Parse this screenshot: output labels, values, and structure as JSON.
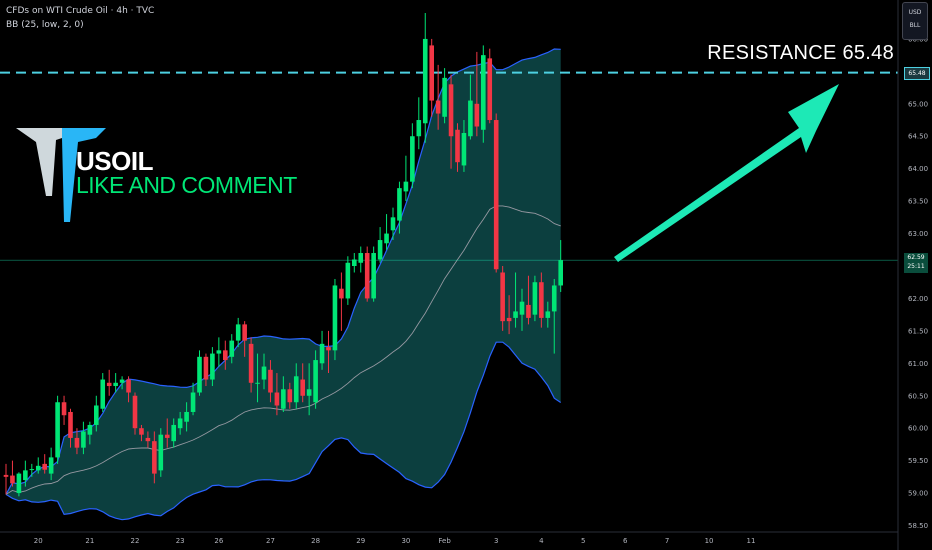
{
  "header": {
    "symbol_line": "CFDs on WTI Crude Oil · 4h · TVC",
    "indicator_line": "BB (25, low, 2, 0)"
  },
  "brand": {
    "title": "USOIL",
    "subtitle": "LIKE AND COMMENT",
    "logo_icon": "tradingview-style-logo-icon"
  },
  "annotation": {
    "text": "RESISTANCE  65.48",
    "arrow_icon": "up-right-arrow-icon",
    "arrow_color": "#1de9b6"
  },
  "price_scale_toggle": {
    "top": "USD",
    "bottom": "BLL"
  },
  "price_badges": {
    "resistance": "65.48",
    "current_price": "62.59",
    "countdown": "25:11"
  },
  "colors": {
    "background": "#000000",
    "bull": "#00e676",
    "bear": "#f23645",
    "band_fill": "#0e4a4a",
    "band_line": "#2962ff",
    "basis": "#9598a1",
    "resistance_line": "#4dd0e1",
    "current_line": "#1de9b6"
  },
  "chart_data": {
    "type": "candlestick",
    "title": "CFDs on WTI Crude Oil · 4h · TVC",
    "ylim": [
      58.4,
      66.6
    ],
    "y_ticks": [
      "58.50",
      "59.00",
      "59.50",
      "60.00",
      "60.50",
      "61.00",
      "61.50",
      "62.00",
      "62.50",
      "63.00",
      "63.50",
      "64.00",
      "64.50",
      "65.00",
      "65.50",
      "66.00"
    ],
    "x_ticks": [
      {
        "i": 5,
        "label": "20"
      },
      {
        "i": 13,
        "label": "21"
      },
      {
        "i": 20,
        "label": "22"
      },
      {
        "i": 27,
        "label": "23"
      },
      {
        "i": 33,
        "label": "26"
      },
      {
        "i": 41,
        "label": "27"
      },
      {
        "i": 48,
        "label": "28"
      },
      {
        "i": 55,
        "label": "29"
      },
      {
        "i": 62,
        "label": "30"
      },
      {
        "i": 68,
        "label": "Feb"
      },
      {
        "i": 76,
        "label": "3"
      },
      {
        "i": 83,
        "label": "4"
      },
      {
        "i": 89.5,
        "label": "5"
      },
      {
        "i": 96,
        "label": "6"
      },
      {
        "i": 102.5,
        "label": "7"
      },
      {
        "i": 109,
        "label": "10"
      },
      {
        "i": 115.5,
        "label": "11"
      }
    ],
    "resistance": 65.48,
    "current_price": 62.59,
    "candles": [
      [
        59.28,
        59.25,
        59.45,
        58.98
      ],
      [
        59.27,
        59.15,
        59.5,
        59.1
      ],
      [
        59.0,
        59.3,
        59.32,
        58.95
      ],
      [
        59.2,
        59.35,
        59.5,
        59.1
      ],
      [
        59.36,
        59.37,
        59.45,
        59.25
      ],
      [
        59.35,
        59.42,
        59.55,
        59.3
      ],
      [
        59.45,
        59.36,
        59.6,
        59.3
      ],
      [
        59.3,
        59.55,
        59.7,
        59.2
      ],
      [
        59.55,
        60.4,
        60.5,
        59.45
      ],
      [
        60.4,
        60.2,
        60.5,
        60.05
      ],
      [
        60.25,
        59.85,
        60.3,
        59.7
      ],
      [
        59.85,
        59.7,
        60.0,
        59.6
      ],
      [
        59.7,
        59.95,
        60.1,
        59.6
      ],
      [
        59.9,
        60.05,
        60.1,
        59.75
      ],
      [
        60.05,
        60.35,
        60.5,
        59.95
      ],
      [
        60.3,
        60.75,
        60.85,
        60.25
      ],
      [
        60.7,
        60.65,
        60.9,
        60.5
      ],
      [
        60.65,
        60.7,
        60.85,
        60.55
      ],
      [
        60.7,
        60.75,
        60.8,
        60.6
      ],
      [
        60.75,
        60.55,
        60.8,
        60.4
      ],
      [
        60.5,
        60.0,
        60.55,
        59.9
      ],
      [
        60.0,
        59.9,
        60.05,
        59.8
      ],
      [
        59.85,
        59.8,
        59.95,
        59.7
      ],
      [
        59.8,
        59.3,
        59.95,
        59.15
      ],
      [
        59.35,
        59.9,
        60.0,
        59.25
      ],
      [
        59.9,
        59.85,
        60.15,
        59.7
      ],
      [
        59.8,
        60.05,
        60.15,
        59.7
      ],
      [
        60.0,
        60.15,
        60.25,
        59.9
      ],
      [
        60.1,
        60.25,
        60.4,
        59.95
      ],
      [
        60.25,
        60.55,
        60.7,
        60.2
      ],
      [
        60.55,
        61.1,
        61.2,
        60.5
      ],
      [
        61.1,
        60.75,
        61.15,
        60.65
      ],
      [
        60.75,
        61.15,
        61.25,
        60.65
      ],
      [
        61.15,
        61.2,
        61.4,
        60.95
      ],
      [
        61.2,
        61.05,
        61.35,
        60.9
      ],
      [
        61.1,
        61.35,
        61.45,
        61.0
      ],
      [
        61.35,
        61.6,
        61.7,
        61.25
      ],
      [
        61.6,
        61.35,
        61.65,
        61.1
      ],
      [
        61.3,
        60.7,
        61.4,
        60.55
      ],
      [
        60.7,
        60.7,
        61.15,
        60.4
      ],
      [
        60.75,
        60.95,
        61.15,
        60.6
      ],
      [
        60.9,
        60.55,
        61.05,
        60.4
      ],
      [
        60.55,
        60.35,
        60.85,
        60.2
      ],
      [
        60.3,
        60.6,
        60.8,
        60.25
      ],
      [
        60.6,
        60.4,
        60.7,
        60.3
      ],
      [
        60.4,
        60.8,
        61.0,
        60.3
      ],
      [
        60.75,
        60.5,
        61.0,
        60.4
      ],
      [
        60.5,
        60.6,
        61.0,
        60.2
      ],
      [
        60.4,
        61.05,
        61.2,
        60.3
      ],
      [
        61.0,
        61.3,
        61.5,
        60.9
      ],
      [
        61.25,
        61.2,
        61.5,
        60.85
      ],
      [
        61.2,
        62.2,
        62.3,
        61.05
      ],
      [
        62.15,
        62.0,
        62.4,
        61.5
      ],
      [
        62.0,
        62.55,
        62.65,
        61.9
      ],
      [
        62.5,
        62.6,
        62.7,
        62.4
      ],
      [
        62.55,
        62.7,
        62.8,
        62.4
      ],
      [
        62.7,
        62.0,
        62.8,
        61.95
      ],
      [
        62.0,
        62.7,
        62.8,
        61.95
      ],
      [
        62.6,
        62.9,
        63.1,
        62.55
      ],
      [
        62.85,
        63.0,
        63.3,
        62.75
      ],
      [
        63.05,
        63.25,
        63.4,
        62.9
      ],
      [
        63.2,
        63.7,
        63.8,
        63.0
      ],
      [
        63.65,
        63.8,
        64.2,
        63.5
      ],
      [
        63.8,
        64.5,
        64.7,
        63.7
      ],
      [
        64.5,
        64.75,
        65.1,
        64.3
      ],
      [
        64.7,
        66.0,
        66.4,
        64.4
      ],
      [
        65.9,
        65.05,
        66.0,
        64.8
      ],
      [
        65.05,
        64.85,
        65.6,
        64.6
      ],
      [
        64.8,
        65.4,
        65.55,
        64.7
      ],
      [
        65.3,
        64.5,
        65.45,
        64.0
      ],
      [
        64.6,
        64.1,
        64.7,
        63.95
      ],
      [
        64.05,
        64.55,
        64.75,
        63.95
      ],
      [
        64.5,
        65.05,
        65.45,
        64.45
      ],
      [
        65.0,
        64.65,
        65.8,
        64.5
      ],
      [
        64.6,
        65.75,
        65.9,
        64.4
      ],
      [
        65.7,
        64.75,
        65.85,
        64.7
      ],
      [
        64.75,
        62.45,
        64.85,
        62.4
      ],
      [
        62.4,
        61.65,
        62.5,
        61.5
      ],
      [
        61.7,
        61.65,
        62.05,
        61.45
      ],
      [
        61.7,
        61.8,
        62.4,
        61.55
      ],
      [
        61.75,
        61.95,
        62.15,
        61.5
      ],
      [
        61.9,
        61.7,
        62.35,
        61.6
      ],
      [
        61.75,
        62.25,
        62.35,
        61.65
      ],
      [
        62.25,
        61.7,
        62.4,
        61.55
      ],
      [
        61.7,
        61.8,
        61.95,
        61.55
      ],
      [
        61.8,
        62.2,
        62.3,
        61.15
      ],
      [
        62.2,
        62.59,
        62.9,
        62.1
      ]
    ]
  }
}
